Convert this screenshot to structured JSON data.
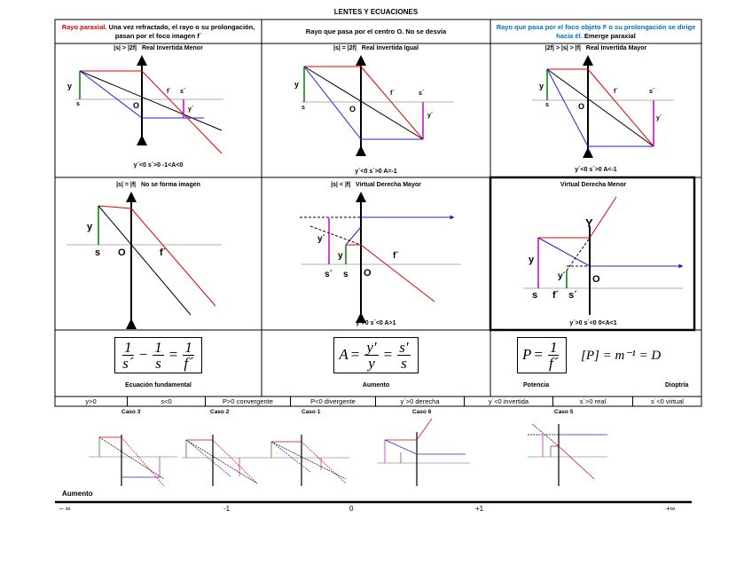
{
  "title": "LENTES Y ECUACIONES",
  "headers": {
    "col1_red": "Rayo paraxial.",
    "col1_rest": " Una vez refractado, el rayo o su prolongación, pasan por el foco imagen f´",
    "col2": "Rayo que pasa por el centro O. No se desvía",
    "col3_blue": "Rayo que pasa por el foco objeto F o su prolongación se dirige hacia él.",
    "col3_rest": " Emerge paraxial"
  },
  "cells": {
    "c1": {
      "cond": "|s| > |2f|",
      "type": "Real Invertida Menor",
      "result": "y´<0  s´>0  -1<A<0"
    },
    "c2": {
      "cond": "|s| = |2f|",
      "type": "Real Invertida Igual",
      "result": "y´<0  s´>0   A=-1"
    },
    "c3": {
      "cond": "|2f| > |s| > |f|",
      "type": "Real Invertida Mayor",
      "result": "y´<0  s´>0   A<-1"
    },
    "c4": {
      "cond": "|s| = |f|",
      "type": "No se forma imagen",
      "result": ""
    },
    "c5": {
      "cond": "|s| < |f|",
      "type": "Virtual Derecha Mayor",
      "result": "y´>0  s´<0   A>1"
    },
    "c6": {
      "cond": "",
      "type": "Virtual Derecha Menor",
      "result": "y´>0  s´<0   0<A<1"
    }
  },
  "labels": {
    "y": "y",
    "s": "s",
    "O": "O",
    "f": "f´",
    "s_prime": "s´",
    "y_prime": "y´",
    "Y": "Y"
  },
  "formulas": {
    "fund_caption": "Ecuación fundamental",
    "aumento_caption": "Aumento",
    "potencia_caption": "Potencia",
    "dioptria_caption": "Dioptría",
    "unit": "[P] = m⁻¹ = D"
  },
  "sign_table": [
    "y>0",
    "s<0",
    "P>0  convergente",
    "P<0  divergente",
    "y´>0  derecha",
    "y´<0    invertida",
    "s´>0  real",
    "s´<0  virtual"
  ],
  "casos": [
    "Caso 3",
    "Caso 2",
    "Caso 1",
    "Caso 6",
    "Caso 5"
  ],
  "axis": {
    "label": "Aumento",
    "ticks": [
      "– ∞",
      "-1",
      "0",
      "+1",
      "+∞"
    ]
  }
}
